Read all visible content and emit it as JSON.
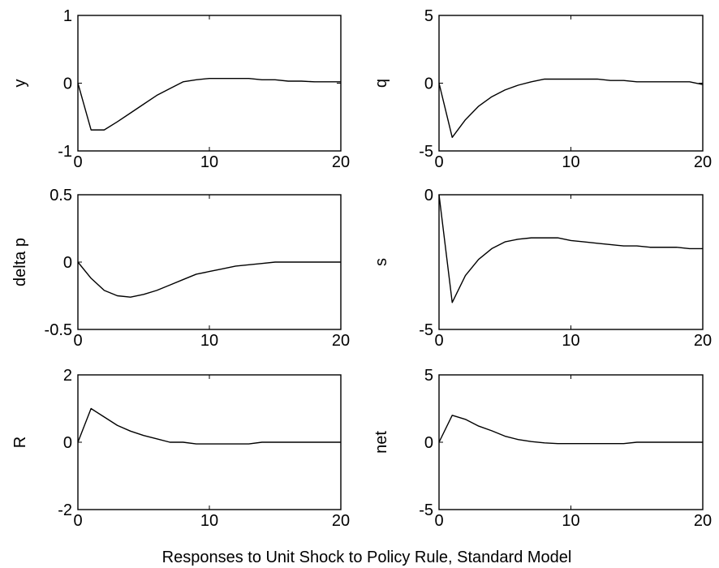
{
  "figure": {
    "caption": "Responses to Unit Shock to Policy Rule, Standard Model"
  },
  "chart_data": [
    {
      "type": "line",
      "ylabel": "y",
      "xlim": [
        0,
        20
      ],
      "ylim": [
        -1,
        1
      ],
      "xticks": [
        0,
        10,
        20
      ],
      "yticks": [
        -1,
        0,
        1
      ],
      "x": [
        0,
        1,
        2,
        3,
        4,
        5,
        6,
        7,
        8,
        9,
        10,
        11,
        12,
        13,
        14,
        15,
        16,
        17,
        18,
        19,
        20
      ],
      "values": [
        0,
        -0.69,
        -0.69,
        -0.57,
        -0.44,
        -0.31,
        -0.18,
        -0.08,
        0.02,
        0.05,
        0.07,
        0.07,
        0.07,
        0.07,
        0.05,
        0.05,
        0.03,
        0.03,
        0.02,
        0.02,
        0.02
      ]
    },
    {
      "type": "line",
      "ylabel": "q",
      "xlim": [
        0,
        20
      ],
      "ylim": [
        -5,
        5
      ],
      "xticks": [
        0,
        10,
        20
      ],
      "yticks": [
        -5,
        0,
        5
      ],
      "x": [
        0,
        1,
        2,
        3,
        4,
        5,
        6,
        7,
        8,
        9,
        10,
        11,
        12,
        13,
        14,
        15,
        16,
        17,
        18,
        19,
        20
      ],
      "values": [
        0,
        -4,
        -2.7,
        -1.7,
        -1.0,
        -0.5,
        -0.15,
        0.1,
        0.3,
        0.3,
        0.3,
        0.3,
        0.3,
        0.2,
        0.2,
        0.1,
        0.1,
        0.1,
        0.1,
        0.1,
        -0.1
      ]
    },
    {
      "type": "line",
      "ylabel": "delta p",
      "xlim": [
        0,
        20
      ],
      "ylim": [
        -0.5,
        0.5
      ],
      "xticks": [
        0,
        10,
        20
      ],
      "yticks": [
        -0.5,
        0,
        0.5
      ],
      "yticklabels": [
        "-0.5",
        "0",
        "0.5"
      ],
      "x": [
        0,
        1,
        2,
        3,
        4,
        5,
        6,
        7,
        8,
        9,
        10,
        11,
        12,
        13,
        14,
        15,
        16,
        17,
        18,
        19,
        20
      ],
      "values": [
        0,
        -0.12,
        -0.21,
        -0.25,
        -0.26,
        -0.24,
        -0.21,
        -0.17,
        -0.13,
        -0.09,
        -0.07,
        -0.05,
        -0.03,
        -0.02,
        -0.01,
        0,
        0,
        0,
        0,
        0,
        0
      ]
    },
    {
      "type": "line",
      "ylabel": "s",
      "xlim": [
        0,
        20
      ],
      "ylim": [
        -5,
        0
      ],
      "xticks": [
        0,
        10,
        20
      ],
      "yticks": [
        -5,
        0
      ],
      "x": [
        0,
        1,
        2,
        3,
        4,
        5,
        6,
        7,
        8,
        9,
        10,
        11,
        12,
        13,
        14,
        15,
        16,
        17,
        18,
        19,
        20
      ],
      "values": [
        0,
        -4,
        -3,
        -2.4,
        -2.0,
        -1.75,
        -1.65,
        -1.6,
        -1.6,
        -1.6,
        -1.7,
        -1.75,
        -1.8,
        -1.85,
        -1.9,
        -1.9,
        -1.95,
        -1.95,
        -1.95,
        -2.0,
        -2.0
      ]
    },
    {
      "type": "line",
      "ylabel": "R",
      "xlim": [
        0,
        20
      ],
      "ylim": [
        -2,
        2
      ],
      "xticks": [
        0,
        10,
        20
      ],
      "yticks": [
        -2,
        0,
        2
      ],
      "x": [
        0,
        1,
        2,
        3,
        4,
        5,
        6,
        7,
        8,
        9,
        10,
        11,
        12,
        13,
        14,
        15,
        16,
        17,
        18,
        19,
        20
      ],
      "values": [
        0,
        1.0,
        0.75,
        0.5,
        0.33,
        0.2,
        0.1,
        0,
        0,
        -0.05,
        -0.05,
        -0.05,
        -0.05,
        -0.05,
        0,
        0,
        0,
        0,
        0,
        0,
        0
      ]
    },
    {
      "type": "line",
      "ylabel": "net",
      "xlim": [
        0,
        20
      ],
      "ylim": [
        -5,
        5
      ],
      "xticks": [
        0,
        10,
        20
      ],
      "yticks": [
        -5,
        0,
        5
      ],
      "x": [
        0,
        1,
        2,
        3,
        4,
        5,
        6,
        7,
        8,
        9,
        10,
        11,
        12,
        13,
        14,
        15,
        16,
        17,
        18,
        19,
        20
      ],
      "values": [
        0,
        2.0,
        1.7,
        1.2,
        0.85,
        0.45,
        0.2,
        0.05,
        -0.05,
        -0.1,
        -0.1,
        -0.1,
        -0.1,
        -0.1,
        -0.1,
        0,
        0,
        0,
        0,
        0,
        0
      ]
    }
  ]
}
